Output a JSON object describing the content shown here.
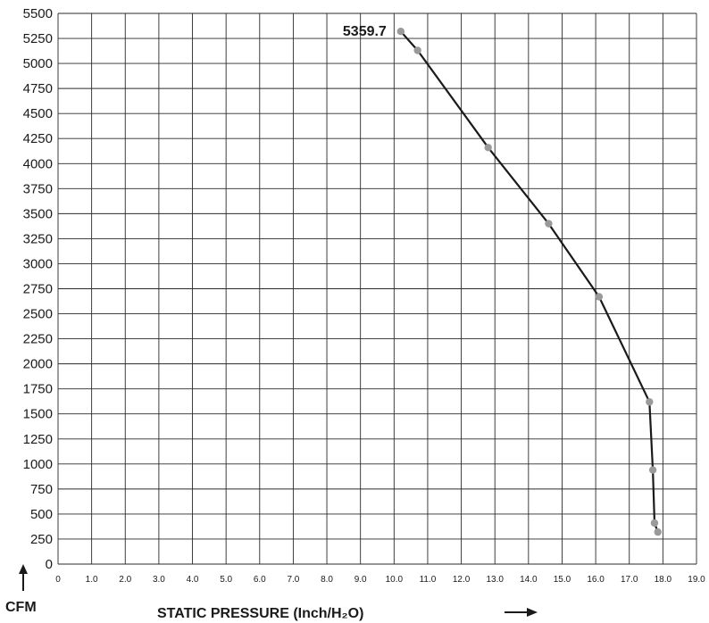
{
  "chart_data": {
    "type": "line",
    "xlabel": "STATIC PRESSURE (Inch/H₂O)",
    "ylabel": "CFM",
    "xlim": [
      0,
      19
    ],
    "ylim": [
      0,
      5500
    ],
    "x_ticks": [
      "0",
      "1.0",
      "2.0",
      "3.0",
      "4.0",
      "5.0",
      "6.0",
      "7.0",
      "8.0",
      "9.0",
      "10.0",
      "11.0",
      "12.0",
      "13.0",
      "14.0",
      "15.0",
      "16.0",
      "17.0",
      "18.0",
      "19.0"
    ],
    "y_ticks": [
      "0",
      "250",
      "500",
      "750",
      "1000",
      "1250",
      "1500",
      "1750",
      "2000",
      "2250",
      "2500",
      "2750",
      "3000",
      "3250",
      "3500",
      "3750",
      "4000",
      "4250",
      "4500",
      "4750",
      "5000",
      "5250",
      "5500"
    ],
    "grid": true,
    "series": [
      {
        "points": [
          {
            "x": 10.2,
            "y": 5320
          },
          {
            "x": 10.7,
            "y": 5130
          },
          {
            "x": 12.8,
            "y": 4160
          },
          {
            "x": 14.6,
            "y": 3400
          },
          {
            "x": 16.1,
            "y": 2670
          },
          {
            "x": 17.6,
            "y": 1620
          },
          {
            "x": 17.7,
            "y": 940
          },
          {
            "x": 17.75,
            "y": 410
          },
          {
            "x": 17.85,
            "y": 320
          }
        ]
      }
    ],
    "annotations": [
      {
        "text": "5359.7",
        "x": 10.2,
        "y": 5320
      }
    ],
    "line_color": "#1a1a1a",
    "marker_color": "#9a9a9a"
  }
}
